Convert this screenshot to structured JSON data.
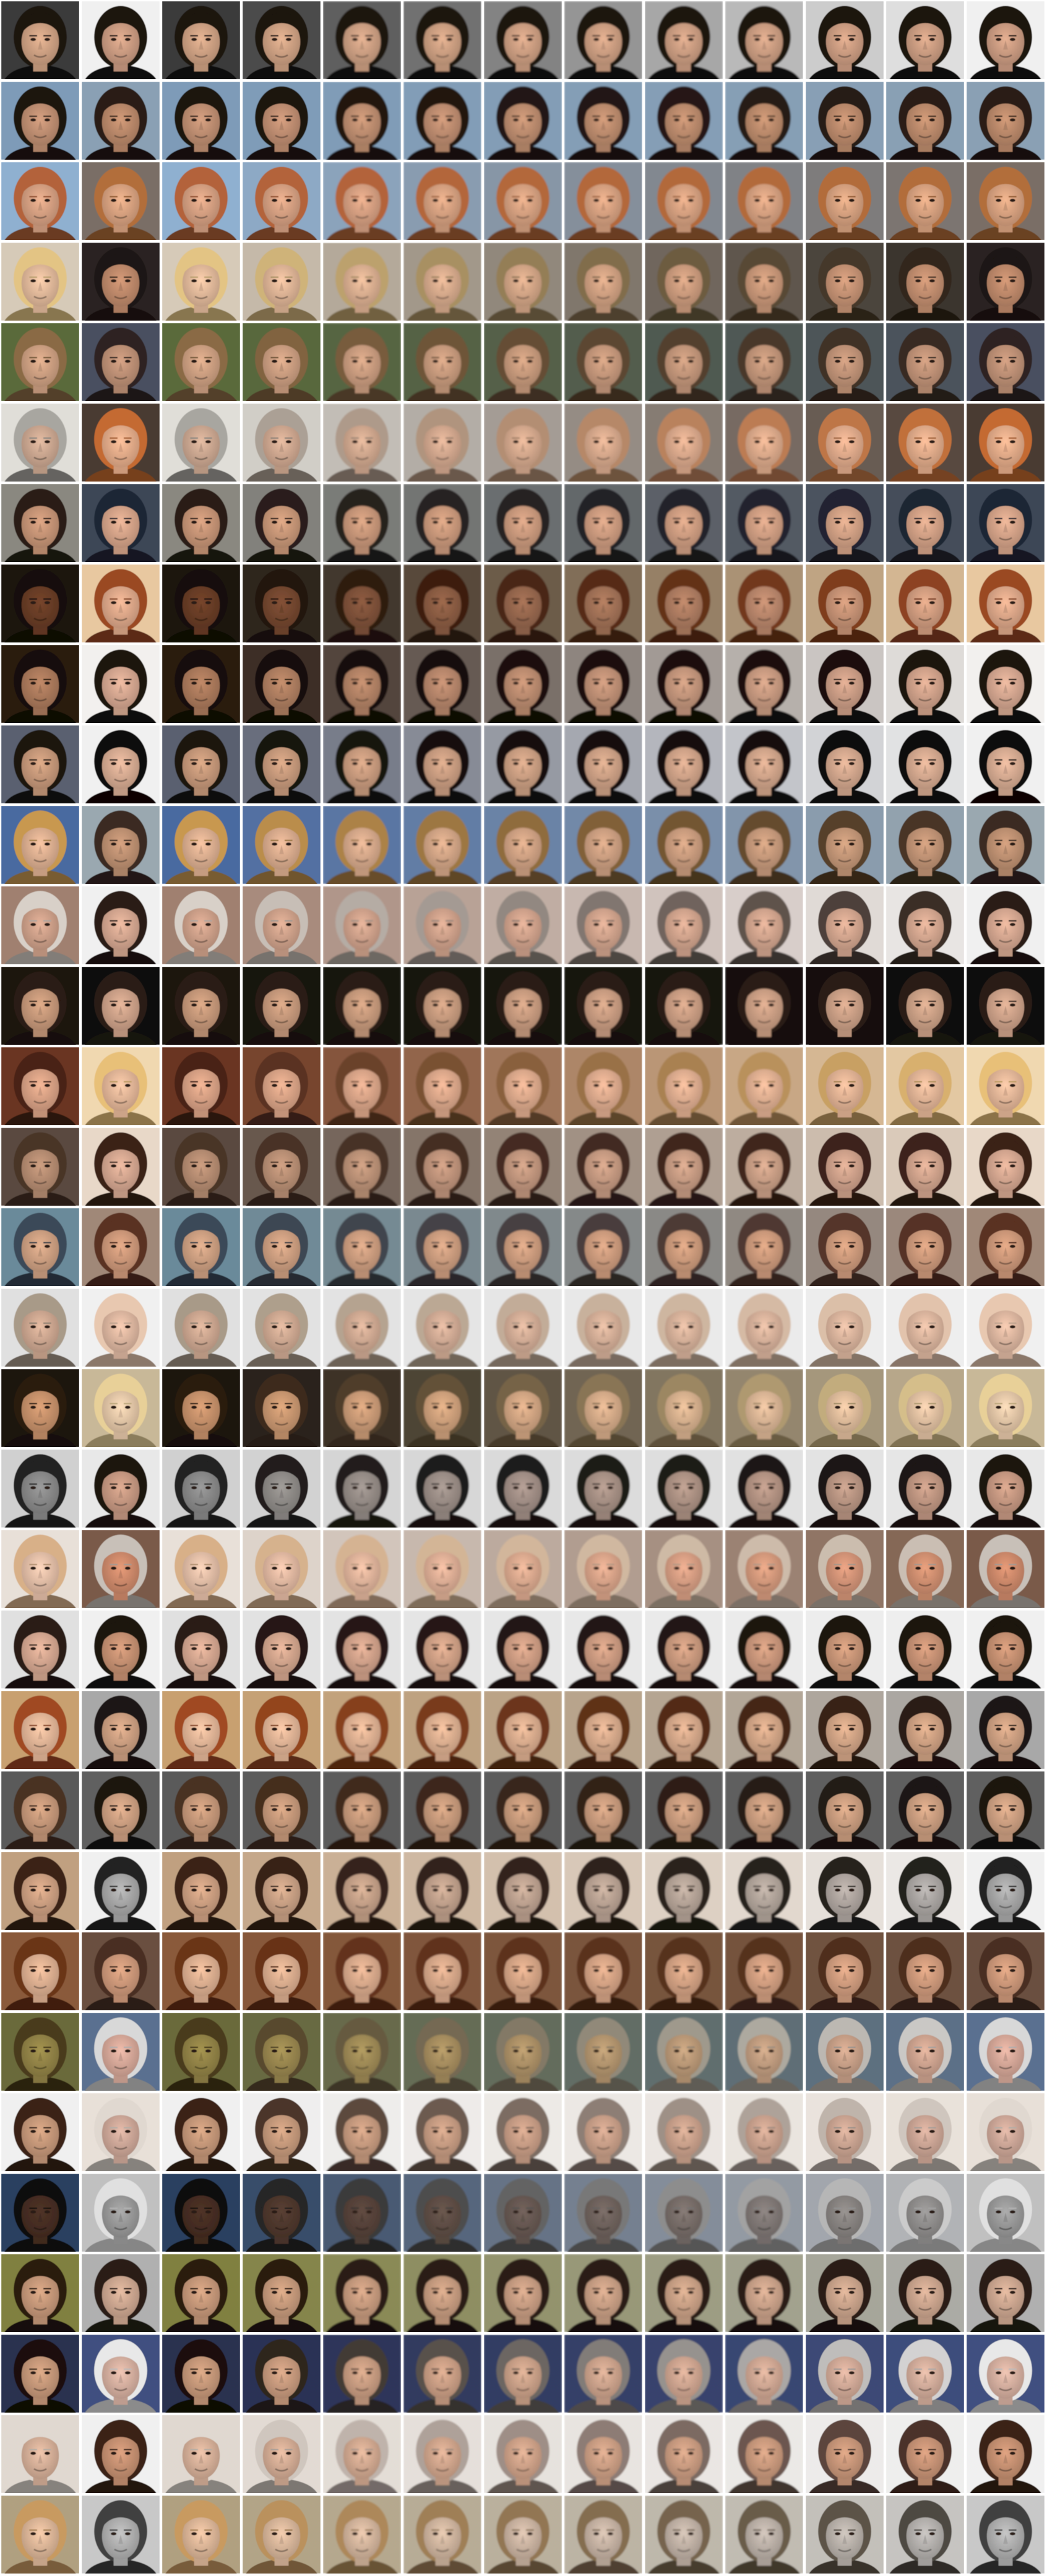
{
  "grid": {
    "rows": 32,
    "cols": 13,
    "description_rows": [
      {
        "start": "dark-hair-woman",
        "end": "dark-hair-woman",
        "bg_start": "#3a3a3a",
        "bg_end": "#f0f0f0",
        "skin_start": "#d9a98a",
        "skin_end": "#d6a488",
        "hair_start": "#1a120e",
        "hair_end": "#1b1410"
      },
      {
        "start": "dark-hair-man",
        "end": "dark-hair-man",
        "bg_start": "#7e9bb8",
        "bg_end": "#8aa0b4",
        "skin_start": "#c99678",
        "skin_end": "#c49070",
        "hair_start": "#1e1410",
        "hair_end": "#2a1c14"
      },
      {
        "start": "red-beard-man",
        "end": "blonde-woman",
        "bg_start": "#8fb0d0",
        "bg_end": "#7a6e66",
        "skin_start": "#e0a888",
        "skin_end": "#e3aa86",
        "hair_start": "#b3623a",
        "hair_end": "#b26e3a"
      },
      {
        "start": "blonde-woman",
        "end": "dark-hair-man",
        "bg_start": "#d6cab8",
        "bg_end": "#2a2420",
        "skin_start": "#edc2a2",
        "skin_end": "#c89070",
        "hair_start": "#e3c484",
        "hair_end": "#1e1612"
      },
      {
        "start": "blonde-man",
        "end": "dark-hair-man",
        "bg_start": "#5a6a3a",
        "bg_end": "#4a5060",
        "skin_start": "#d8a888",
        "skin_end": "#c8987c",
        "hair_start": "#8a6a44",
        "hair_end": "#2e2420"
      },
      {
        "start": "grey-hair-man",
        "end": "ginger-man",
        "bg_start": "#e0ded8",
        "bg_end": "#4a3a30",
        "skin_start": "#d6b098",
        "skin_end": "#f0b490",
        "hair_start": "#a8a6a0",
        "hair_end": "#c46a30"
      },
      {
        "start": "dark-hair-man",
        "end": "beanie-man",
        "bg_start": "#8a8880",
        "bg_end": "#3c4656",
        "skin_start": "#d09c7c",
        "skin_end": "#e0ac90",
        "hair_start": "#2a1e18",
        "hair_end": "#1e2636"
      },
      {
        "start": "dark-skin-man",
        "end": "auburn-woman",
        "bg_start": "#1a1410",
        "bg_end": "#e8c8a0",
        "skin_start": "#6e4028",
        "skin_end": "#e8b090",
        "hair_start": "#140e0a",
        "hair_end": "#9a4822"
      },
      {
        "start": "bearded-man",
        "end": "dark-hair-woman",
        "bg_start": "#2a1a10",
        "bg_end": "#f2f0ee",
        "skin_start": "#b48060",
        "skin_end": "#e0b098",
        "hair_start": "#180e08",
        "hair_end": "#1c120c"
      },
      {
        "start": "dark-hair-man",
        "end": "black-hair-woman",
        "bg_start": "#5a6070",
        "bg_end": "#f0f0f0",
        "skin_start": "#d0a080",
        "skin_end": "#e2b49a",
        "hair_start": "#1a1410",
        "hair_end": "#0e0a0a"
      },
      {
        "start": "blonde-woman",
        "end": "dark-hair-man",
        "bg_start": "#4a6aa0",
        "bg_end": "#9aa8b0",
        "skin_start": "#e8b898",
        "skin_end": "#c89878",
        "hair_start": "#c89850",
        "hair_end": "#3a2a20"
      },
      {
        "start": "grey-beard-man",
        "end": "dark-hair-man",
        "bg_start": "#a08070",
        "bg_end": "#f0f0f0",
        "skin_start": "#d8a890",
        "skin_end": "#e0b098",
        "hair_start": "#d8d0c8",
        "hair_end": "#2a1c16"
      },
      {
        "start": "dark-hair-man",
        "end": "dark-hair-man",
        "bg_start": "#1a1410",
        "bg_end": "#101010",
        "skin_start": "#d0a080",
        "skin_end": "#d8aa90",
        "hair_start": "#2a1a12",
        "hair_end": "#2a1e18"
      },
      {
        "start": "brunette-woman",
        "end": "blonde-woman",
        "bg_start": "#6a3420",
        "bg_end": "#f0d8b0",
        "skin_start": "#e4aa8c",
        "skin_end": "#f0c0a0",
        "hair_start": "#4a2216",
        "hair_end": "#e8c078"
      },
      {
        "start": "brunette-woman",
        "end": "brunette-woman",
        "bg_start": "#5a4a40",
        "bg_end": "#e8d8c8",
        "skin_start": "#c09478",
        "skin_end": "#e0b098",
        "hair_start": "#4a3428",
        "hair_end": "#3a2018"
      },
      {
        "start": "cap-man",
        "end": "brunette-woman",
        "bg_start": "#6a8a9a",
        "bg_end": "#a08878",
        "skin_start": "#d8a888",
        "skin_end": "#d8a080",
        "hair_start": "#3a4a58",
        "hair_end": "#5a3020"
      },
      {
        "start": "short-hair-man",
        "end": "bald-man",
        "bg_start": "#e0e0e0",
        "bg_end": "#f0f0f0",
        "skin_start": "#d8b098",
        "skin_end": "#e8c0a8",
        "hair_start": "#a89a88",
        "hair_end": "#e8c8b0"
      },
      {
        "start": "dark-hair-man",
        "end": "blonde-woman",
        "bg_start": "#1a120c",
        "bg_end": "#c8b898",
        "skin_start": "#d09870",
        "skin_end": "#f0d0b0",
        "hair_start": "#2a1a10",
        "hair_end": "#e8d098"
      },
      {
        "start": "cap-man",
        "end": "dark-hair-man",
        "bg_start": "#d0d0d0",
        "bg_end": "#e8e8e8",
        "skin_start": "#909090",
        "skin_end": "#d0a088",
        "hair_start": "#202020",
        "hair_end": "#1e1610"
      },
      {
        "start": "blonde-woman",
        "end": "older-man",
        "bg_start": "#e8e0d8",
        "bg_end": "#7a5a48",
        "skin_start": "#f0c8b0",
        "skin_end": "#d89070",
        "hair_start": "#d8b088",
        "hair_end": "#c8c0b8"
      },
      {
        "start": "brunette-woman",
        "end": "dark-hair-man",
        "bg_start": "#e0e0e0",
        "bg_end": "#f0f0f0",
        "skin_start": "#e0b098",
        "skin_end": "#d09878",
        "hair_start": "#2a1a14",
        "hair_end": "#1a1210"
      },
      {
        "start": "red-hair-woman",
        "end": "dark-hair-man",
        "bg_start": "#c8a070",
        "bg_end": "#a8a8a8",
        "skin_start": "#f0c0a0",
        "skin_end": "#d8a888",
        "hair_start": "#a04a20",
        "hair_end": "#1e1612"
      },
      {
        "start": "brown-hair-man",
        "end": "dark-hair-man",
        "bg_start": "#5a5a5a",
        "bg_end": "#606060",
        "skin_start": "#d0a080",
        "skin_end": "#d8a888",
        "hair_start": "#4a3020",
        "hair_end": "#1a1410"
      },
      {
        "start": "dark-hair-man",
        "end": "bw-woman",
        "bg_start": "#c0a080",
        "bg_end": "#f0f0f0",
        "skin_start": "#d8a888",
        "skin_end": "#b0b0b0",
        "hair_start": "#3a2418",
        "hair_end": "#202020"
      },
      {
        "start": "brunette-woman",
        "end": "blurred-man",
        "bg_start": "#8a5a3a",
        "bg_end": "#6a5040",
        "skin_start": "#e8b898",
        "skin_end": "#d8a080",
        "hair_start": "#6a3418",
        "hair_end": "#4a2e20"
      },
      {
        "start": "painted-man",
        "end": "grey-hair-man",
        "bg_start": "#6a6a3a",
        "bg_end": "#5a7090",
        "skin_start": "#9a8a4a",
        "skin_end": "#e0b0a0",
        "hair_start": "#4a3a1a",
        "hair_end": "#d8d8d8"
      },
      {
        "start": "bearded-man",
        "end": "grey-man",
        "bg_start": "#f0f0f0",
        "bg_end": "#e8e0d8",
        "skin_start": "#d0a080",
        "skin_end": "#d8b0a0",
        "hair_start": "#3a2418",
        "hair_end": "#e0d8d0"
      },
      {
        "start": "dark-skin-man",
        "end": "bw-man",
        "bg_start": "#2a4060",
        "bg_end": "#c0c0c0",
        "skin_start": "#4a3024",
        "skin_end": "#a0a0a0",
        "hair_start": "#101010",
        "hair_end": "#e0e0e0"
      },
      {
        "start": "dark-hair-man",
        "end": "dark-hair-man",
        "bg_start": "#808040",
        "bg_end": "#b0b0b0",
        "skin_start": "#d0a080",
        "skin_end": "#d8b098",
        "hair_start": "#2a1a10",
        "hair_end": "#2a1e18"
      },
      {
        "start": "long-hair-man",
        "end": "grey-hair-man",
        "bg_start": "#2a3050",
        "bg_end": "#405080",
        "skin_start": "#d0a080",
        "skin_end": "#e0b8a8",
        "hair_start": "#1a1008",
        "hair_end": "#e8e8e8"
      },
      {
        "start": "grey-hair-man",
        "end": "brunette-woman",
        "bg_start": "#e0d8d0",
        "bg_end": "#f0f0f0",
        "skin_start": "#e0b8a0",
        "skin_end": "#d09878",
        "hair_start": "#e0d8d0",
        "hair_end": "#3a2018"
      },
      {
        "start": "blonde-woman",
        "end": "bw-woman",
        "bg_start": "#b0a080",
        "bg_end": "#c8c8c8",
        "skin_start": "#e8c0a0",
        "skin_end": "#b8b8b8",
        "hair_start": "#c89a60",
        "hair_end": "#404040"
      }
    ]
  }
}
